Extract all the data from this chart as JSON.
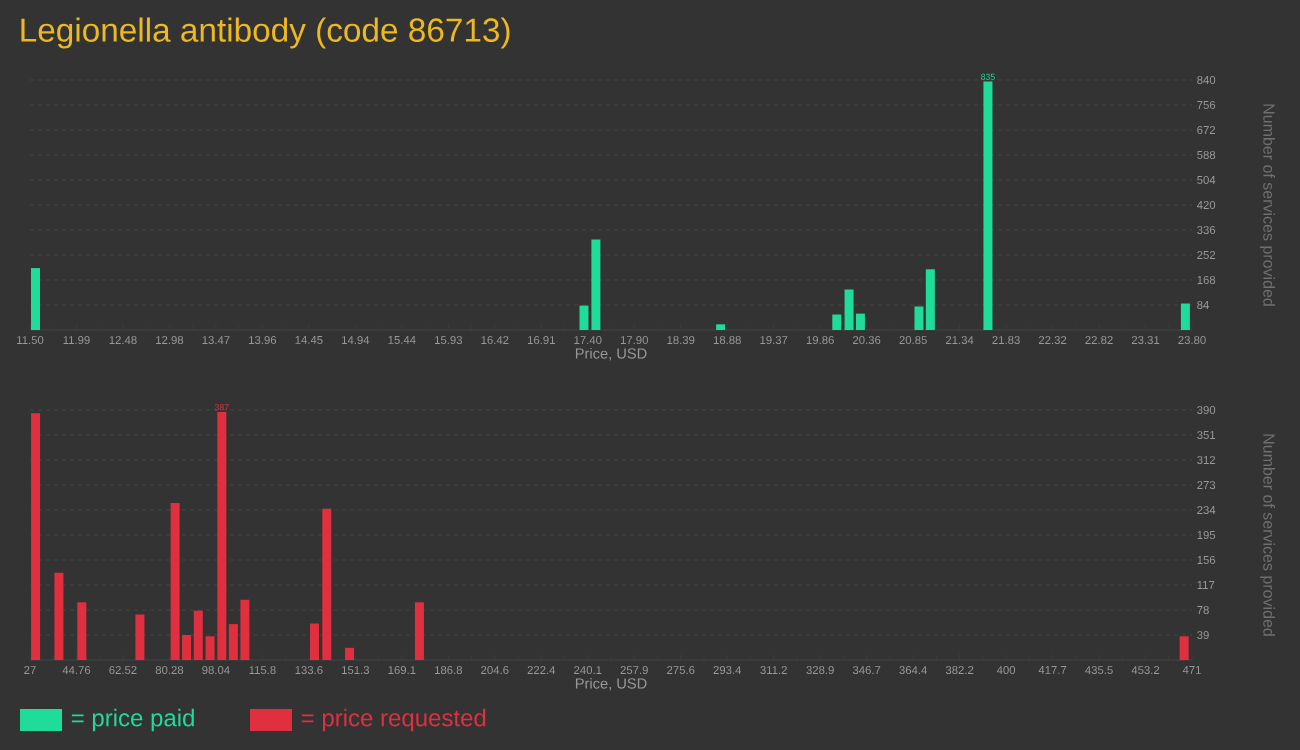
{
  "chart_data": [
    {
      "type": "bar",
      "title": "Legionella antibody (code 86713)",
      "xlabel": "Price, USD",
      "ylabel": "Number of services provided",
      "x": [
        11.558,
        17.364,
        17.49,
        18.81,
        20.04,
        20.17,
        20.29,
        20.91,
        21.03,
        21.64,
        23.73
      ],
      "series": [
        {
          "name": "= price paid",
          "color": "#20dc9a",
          "values": [
            208,
            82,
            304,
            19,
            52,
            136,
            55,
            79,
            204,
            835,
            89
          ],
          "value_labels": [
            null,
            null,
            null,
            null,
            null,
            null,
            null,
            null,
            null,
            "835",
            null
          ]
        }
      ],
      "xlim": [
        11.5,
        23.8
      ],
      "xticks": [
        {
          "value": 11.5,
          "label": "11.50"
        },
        {
          "value": 11.992,
          "label": "11.99"
        },
        {
          "value": 12.484,
          "label": "12.48"
        },
        {
          "value": 12.976,
          "label": "12.98"
        },
        {
          "value": 13.468,
          "label": "13.47"
        },
        {
          "value": 13.96,
          "label": "13.96"
        },
        {
          "value": 14.452,
          "label": "14.45"
        },
        {
          "value": 14.944,
          "label": "14.94"
        },
        {
          "value": 15.436,
          "label": "15.44"
        },
        {
          "value": 15.928,
          "label": "15.93"
        },
        {
          "value": 16.42,
          "label": "16.42"
        },
        {
          "value": 16.912,
          "label": "16.91"
        },
        {
          "value": 17.404,
          "label": "17.40"
        },
        {
          "value": 17.896,
          "label": "17.90"
        },
        {
          "value": 18.388,
          "label": "18.39"
        },
        {
          "value": 18.88,
          "label": "18.88"
        },
        {
          "value": 19.372,
          "label": "19.37"
        },
        {
          "value": 19.864,
          "label": "19.86"
        },
        {
          "value": 20.356,
          "label": "20.36"
        },
        {
          "value": 20.848,
          "label": "20.85"
        },
        {
          "value": 21.34,
          "label": "21.34"
        },
        {
          "value": 21.832,
          "label": "21.83"
        },
        {
          "value": 22.324,
          "label": "22.32"
        },
        {
          "value": 22.816,
          "label": "22.82"
        },
        {
          "value": 23.308,
          "label": "23.31"
        },
        {
          "value": 23.8,
          "label": "23.80"
        }
      ],
      "ylim": [
        0,
        840
      ],
      "yticks": [
        84,
        168,
        252,
        336,
        420,
        504,
        588,
        672,
        756,
        840
      ],
      "grid": "y",
      "legend": "bottom"
    },
    {
      "type": "bar",
      "xlabel": "Price, USD",
      "ylabel": "Number of services provided",
      "x": [
        29.14,
        38.06,
        46.8,
        69.0,
        82.45,
        86.83,
        91.3,
        95.8,
        100.3,
        104.7,
        109.1,
        135.7,
        140.4,
        149.1,
        175.8,
        468.0
      ],
      "series": [
        {
          "name": "= price requested",
          "color": "#e03040",
          "values": [
            385,
            136,
            90,
            71,
            245,
            39,
            77,
            37,
            387,
            56,
            94,
            57,
            236,
            19,
            90,
            37
          ],
          "value_labels": [
            null,
            null,
            null,
            null,
            null,
            null,
            null,
            null,
            "387",
            null,
            null,
            null,
            null,
            null,
            null,
            null
          ]
        }
      ],
      "xlim": [
        27,
        471
      ],
      "xticks": [
        27,
        44.76,
        62.52,
        80.28,
        98.04,
        {
          "value": 115.8,
          "label": "115.8"
        },
        {
          "value": 133.56,
          "label": "133.6"
        },
        {
          "value": 151.32,
          "label": "151.3"
        },
        {
          "value": 169.08,
          "label": "169.1"
        },
        {
          "value": 186.84,
          "label": "186.8"
        },
        {
          "value": 204.6,
          "label": "204.6"
        },
        {
          "value": 222.36,
          "label": "222.4"
        },
        {
          "value": 240.12,
          "label": "240.1"
        },
        {
          "value": 257.88,
          "label": "257.9"
        },
        {
          "value": 275.64,
          "label": "275.6"
        },
        {
          "value": 293.4,
          "label": "293.4"
        },
        {
          "value": 311.16,
          "label": "311.2"
        },
        {
          "value": 328.92,
          "label": "328.9"
        },
        {
          "value": 346.68,
          "label": "346.7"
        },
        {
          "value": 364.44,
          "label": "364.4"
        },
        {
          "value": 382.2,
          "label": "382.2"
        },
        {
          "value": 399.96,
          "label": "400"
        },
        {
          "value": 417.72,
          "label": "417.7"
        },
        {
          "value": 435.48,
          "label": "435.5"
        },
        {
          "value": 453.24,
          "label": "453.2"
        },
        471
      ],
      "ylim": [
        0,
        390
      ],
      "yticks": [
        39,
        78,
        117,
        156,
        195,
        234,
        273,
        312,
        351,
        390
      ],
      "grid": "y",
      "legend": "bottom"
    }
  ]
}
